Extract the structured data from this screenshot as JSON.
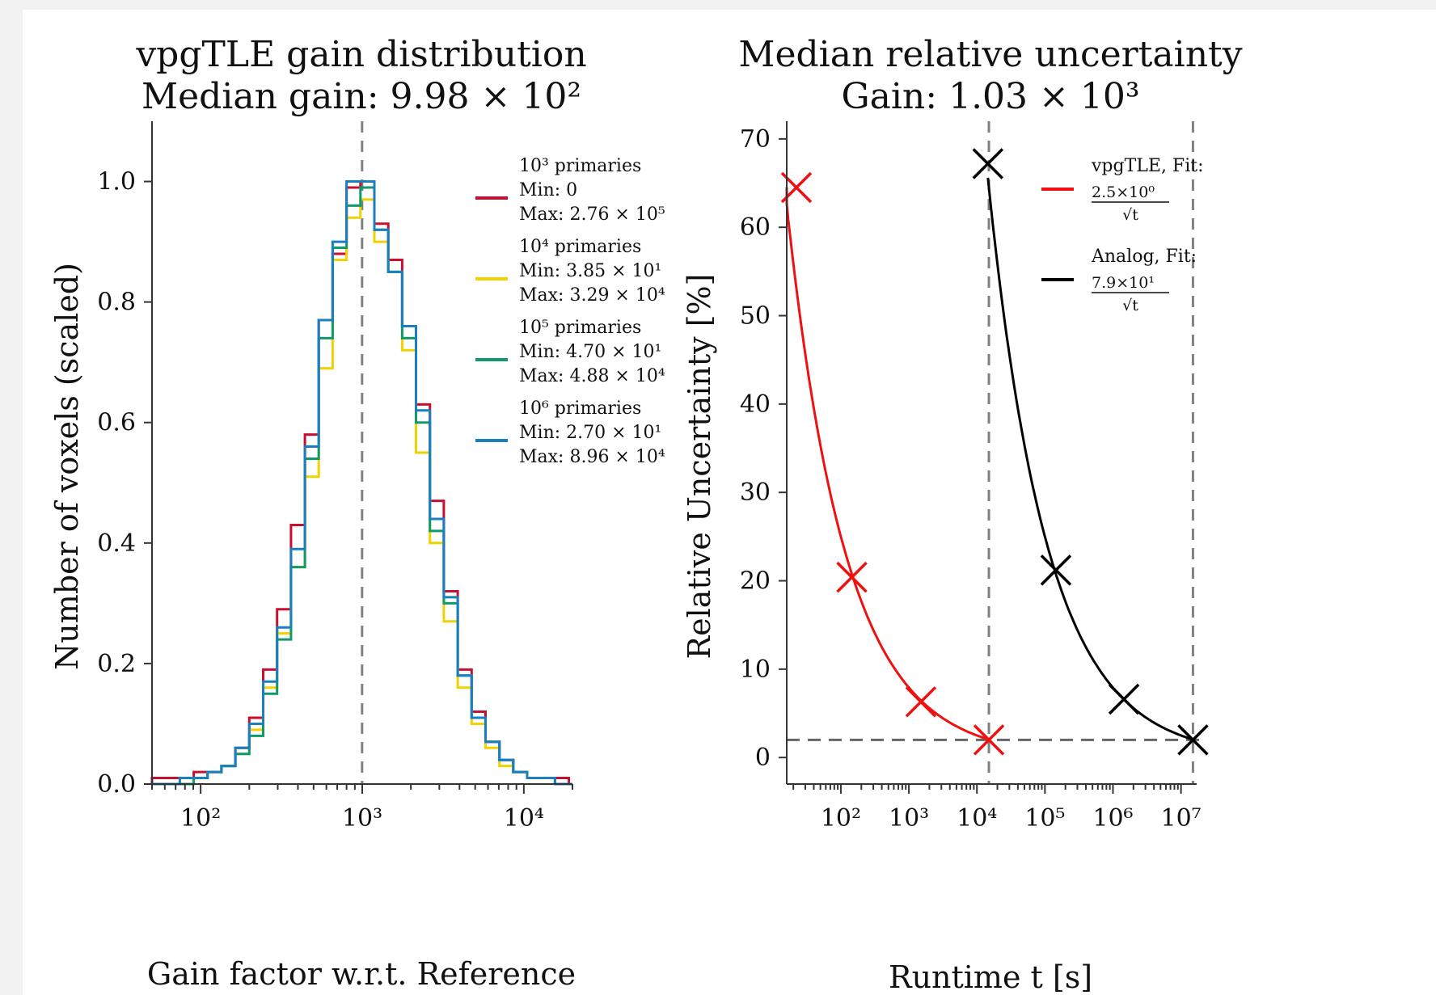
{
  "colors": {
    "series_1e3": "#c8102e",
    "series_1e4": "#f2d100",
    "series_1e5": "#109a6a",
    "series_1e6": "#1a7fc1",
    "vpgtle": "#ee1111",
    "analog": "#000000",
    "ref_line": "#808080",
    "background": "#ffffff",
    "outer": "#f2f2f2"
  },
  "chart_data": [
    {
      "type": "histogram",
      "title": "vpgTLE gain distribution",
      "subtitle": "Median gain: 9.98 × 10²",
      "xlabel": "Gain factor w.r.t. Reference",
      "ylabel": "Number of voxels (scaled)",
      "xscale": "log",
      "xlim": [
        50,
        20000
      ],
      "ylim": [
        0,
        1.1
      ],
      "xticks": [
        {
          "value": 100,
          "label": "10²"
        },
        {
          "value": 1000,
          "label": "10³"
        },
        {
          "value": 10000,
          "label": "10⁴"
        }
      ],
      "yticks": [
        {
          "value": 0.0,
          "label": "0.0"
        },
        {
          "value": 0.2,
          "label": "0.2"
        },
        {
          "value": 0.4,
          "label": "0.4"
        },
        {
          "value": 0.6,
          "label": "0.6"
        },
        {
          "value": 0.8,
          "label": "0.8"
        },
        {
          "value": 1.0,
          "label": "1.0"
        }
      ],
      "median_line_x": 998,
      "legend_position": "top-right",
      "series": [
        {
          "name": "10³ primaries",
          "legend_lines": [
            "10³ primaries",
            "Min: 0",
            "Max: 2.76 × 10⁵"
          ],
          "color_key": "series_1e3",
          "values": [
            0.01,
            0.01,
            0.01,
            0.02,
            0.02,
            0.03,
            0.06,
            0.11,
            0.19,
            0.29,
            0.43,
            0.58,
            0.77,
            0.88,
            0.99,
            1.0,
            0.93,
            0.87,
            0.76,
            0.63,
            0.47,
            0.32,
            0.19,
            0.12,
            0.07,
            0.04,
            0.02,
            0.01,
            0.01,
            0.01,
            0.0
          ]
        },
        {
          "name": "10⁴ primaries",
          "legend_lines": [
            "10⁴ primaries",
            "Min: 3.85 × 10¹",
            "Max: 3.29 × 10⁴"
          ],
          "color_key": "series_1e4",
          "values": [
            0.0,
            0.0,
            0.01,
            0.01,
            0.02,
            0.03,
            0.05,
            0.09,
            0.16,
            0.25,
            0.36,
            0.51,
            0.69,
            0.87,
            0.94,
            0.97,
            0.9,
            0.85,
            0.72,
            0.55,
            0.4,
            0.27,
            0.16,
            0.1,
            0.06,
            0.03,
            0.02,
            0.01,
            0.01,
            0.0,
            0.0
          ]
        },
        {
          "name": "10⁵ primaries",
          "legend_lines": [
            "10⁵ primaries",
            "Min: 4.70 × 10¹",
            "Max: 4.88 × 10⁴"
          ],
          "color_key": "series_1e5",
          "values": [
            0.0,
            0.0,
            0.0,
            0.01,
            0.02,
            0.03,
            0.05,
            0.08,
            0.15,
            0.24,
            0.36,
            0.54,
            0.74,
            0.89,
            0.96,
            0.99,
            0.92,
            0.85,
            0.74,
            0.6,
            0.42,
            0.3,
            0.18,
            0.11,
            0.07,
            0.04,
            0.02,
            0.01,
            0.01,
            0.0,
            0.0
          ]
        },
        {
          "name": "10⁶ primaries",
          "legend_lines": [
            "10⁶ primaries",
            "Min: 2.70 × 10¹",
            "Max: 8.96 × 10⁴"
          ],
          "color_key": "series_1e6",
          "values": [
            0.0,
            0.0,
            0.01,
            0.01,
            0.02,
            0.03,
            0.06,
            0.1,
            0.17,
            0.26,
            0.39,
            0.56,
            0.77,
            0.9,
            1.0,
            1.0,
            0.92,
            0.85,
            0.76,
            0.62,
            0.44,
            0.31,
            0.18,
            0.11,
            0.07,
            0.04,
            0.02,
            0.01,
            0.01,
            0.0,
            0.0
          ]
        }
      ],
      "bin_edges": [
        50.0,
        60.9,
        74.3,
        90.6,
        110.4,
        134.6,
        164.1,
        200.0,
        243.8,
        297.2,
        362.3,
        441.6,
        538.3,
        656.2,
        799.9,
        975.0,
        1188.5,
        1448.8,
        1766.0,
        2152.7,
        2624.1,
        3198.7,
        3899.1,
        4752.9,
        5793.7,
        7062.4,
        8608.9,
        10494.0,
        12792.0,
        15593.0,
        19007.0,
        20000.0
      ]
    },
    {
      "type": "line",
      "title": "Median relative uncertainty",
      "subtitle": "Gain: 1.03 × 10³",
      "xlabel": "Runtime t [s]",
      "ylabel": "Relative Uncertainty [%]",
      "xscale": "log",
      "xlim": [
        16,
        17000000
      ],
      "ylim": [
        -3,
        72
      ],
      "xticks": [
        {
          "value": 100,
          "label": "10²"
        },
        {
          "value": 1000,
          "label": "10³"
        },
        {
          "value": 10000,
          "label": "10⁴"
        },
        {
          "value": 100000,
          "label": "10⁵"
        },
        {
          "value": 1000000,
          "label": "10⁶"
        },
        {
          "value": 10000000,
          "label": "10⁷"
        }
      ],
      "yticks": [
        {
          "value": 0,
          "label": "0"
        },
        {
          "value": 10,
          "label": "10"
        },
        {
          "value": 20,
          "label": "20"
        },
        {
          "value": 30,
          "label": "30"
        },
        {
          "value": 40,
          "label": "40"
        },
        {
          "value": 50,
          "label": "50"
        },
        {
          "value": 60,
          "label": "60"
        },
        {
          "value": 70,
          "label": "70"
        }
      ],
      "reference_lines": {
        "horizontal_y": 2.0,
        "vertical_x": [
          15000,
          15000000
        ]
      },
      "legend_position": "top-right",
      "series": [
        {
          "name": "vpgTLE, Fit:",
          "fit_label": "2.5×10⁰ / √t",
          "fit_coefficient": 250,
          "color_key": "vpgtle",
          "points": [
            {
              "x": 15,
              "y": 64.5
            },
            {
              "x": 145,
              "y": 20.4
            },
            {
              "x": 1500,
              "y": 6.3
            },
            {
              "x": 15000,
              "y": 2.0
            }
          ]
        },
        {
          "name": "Analog, Fit:",
          "fit_label": "7.9×10¹ / √t",
          "fit_coefficient": 7900,
          "color_key": "analog",
          "points": [
            {
              "x": 14500,
              "y": 67.2
            },
            {
              "x": 145000,
              "y": 21.2
            },
            {
              "x": 1450000,
              "y": 6.6
            },
            {
              "x": 15000000,
              "y": 2.0
            }
          ]
        }
      ]
    }
  ]
}
